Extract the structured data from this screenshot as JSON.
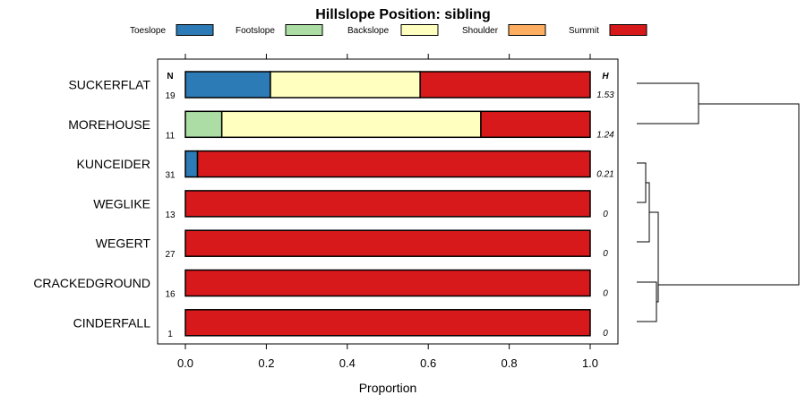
{
  "chart_data": {
    "type": "bar",
    "orientation": "horizontal",
    "stacked": true,
    "title": "Hillslope Position: sibling",
    "xlabel": "Proportion",
    "ylabel": "",
    "xlim": [
      0,
      1
    ],
    "x_ticks": [
      "0.0",
      "0.2",
      "0.4",
      "0.6",
      "0.8",
      "1.0"
    ],
    "n_header": "N",
    "h_header": "H",
    "legend_position": "top",
    "categories": [
      "SUCKERFLAT",
      "MOREHOUSE",
      "KUNCEIDER",
      "WEGLIKE",
      "WEGERT",
      "CRACKEDGROUND",
      "CINDERFALL"
    ],
    "n_values": [
      "19",
      "11",
      "31",
      "13",
      "27",
      "16",
      "1"
    ],
    "h_values": [
      "1.53",
      "1.24",
      "0.21",
      "0",
      "0",
      "0",
      "0"
    ],
    "series": [
      {
        "name": "Toeslope",
        "color": "#2c7bb6",
        "values": [
          0.21,
          0.0,
          0.03,
          0,
          0,
          0,
          0
        ]
      },
      {
        "name": "Footslope",
        "color": "#abdda4",
        "values": [
          0.0,
          0.09,
          0.0,
          0,
          0,
          0,
          0
        ]
      },
      {
        "name": "Backslope",
        "color": "#ffffbf",
        "values": [
          0.37,
          0.64,
          0.0,
          0,
          0,
          0,
          0
        ]
      },
      {
        "name": "Shoulder",
        "color": "#fdae61",
        "values": [
          0.0,
          0.0,
          0.0,
          0,
          0,
          0,
          0
        ]
      },
      {
        "name": "Summit",
        "color": "#d7191c",
        "values": [
          0.42,
          0.27,
          0.97,
          1,
          1,
          1,
          1
        ]
      }
    ]
  }
}
